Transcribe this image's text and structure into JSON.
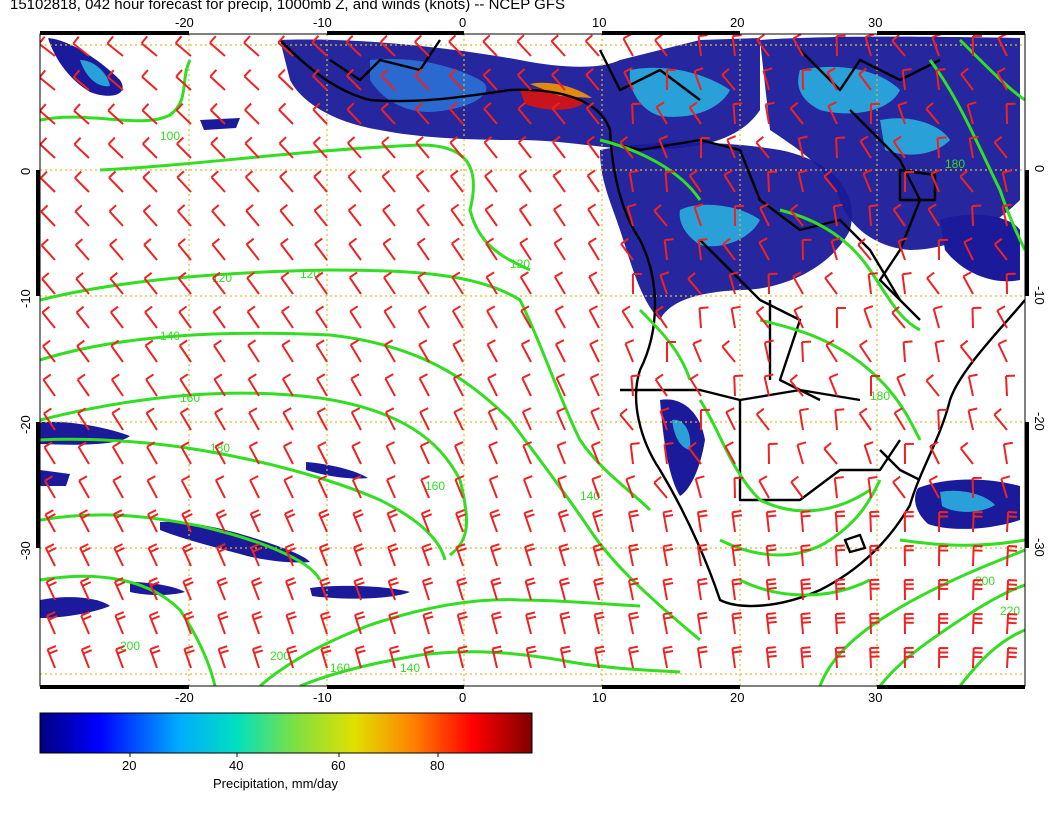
{
  "title": "15102818, 042 hour forecast for precip, 1000mb Z, and winds (knots) -- NCEP GFS",
  "map": {
    "region": "South Atlantic / Southern Africa",
    "lon_ticks": [
      -20,
      -10,
      0,
      10,
      20,
      30
    ],
    "lat_ticks": [
      0,
      -10,
      -20,
      -30
    ],
    "lon_range": [
      -30,
      40
    ],
    "lat_range": [
      -40,
      9
    ],
    "gridlines": true,
    "contour_labels": [
      "100",
      "120",
      "120",
      "120",
      "140",
      "140",
      "140",
      "160",
      "160",
      "160",
      "180",
      "180",
      "180",
      "200",
      "200",
      "200",
      "220"
    ],
    "colors": {
      "contour": "#33dd22",
      "barbs": "#ee2222",
      "coast": "#000000",
      "grid": "#ddbb33",
      "precip_low": "#1a1a9a",
      "precip_mid": "#2aa0d8",
      "precip_high": "#c8141e"
    }
  },
  "colorbar": {
    "title": "Precipitation, mm/day",
    "ticks": [
      "20",
      "40",
      "60",
      "80"
    ],
    "colormap": [
      "#000080",
      "#0000ff",
      "#00aaff",
      "#00e0c0",
      "#80e040",
      "#e0e000",
      "#ff8000",
      "#ff0000",
      "#800000"
    ]
  }
}
